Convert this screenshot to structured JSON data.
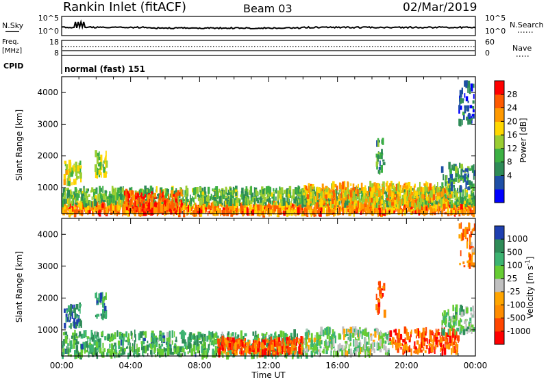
{
  "header": {
    "station": "Rankin Inlet (fitACF)",
    "beam": "Beam 03",
    "date": "02/Mar/2019"
  },
  "noise_panel": {
    "left_label": "N.Sky",
    "right_label": "N.Search",
    "left_ticks": [
      "10^5",
      "10^0"
    ],
    "right_ticks": [
      "10^5",
      "10^0"
    ]
  },
  "freq_panel": {
    "left_label_line1": "Freq.",
    "left_label_line2": "[MHz]",
    "right_label": "Nave",
    "left_ticks": [
      "18",
      "8"
    ],
    "right_ticks": [
      "60",
      "0"
    ]
  },
  "cpid_panel": {
    "label": "CPID",
    "value": "normal (fast) 151"
  },
  "time_axis": {
    "label": "Time UT",
    "ticks": [
      "00:00",
      "04:00",
      "08:00",
      "12:00",
      "16:00",
      "20:00",
      "00:00"
    ]
  },
  "chart_data": [
    {
      "type": "heatmap",
      "name": "power",
      "xlabel": "Time UT",
      "ylabel": "Slant Range [km]",
      "xlim_hours": [
        0,
        24
      ],
      "ylim": [
        180,
        4500
      ],
      "yticks": [
        1000,
        2000,
        3000,
        4000
      ],
      "colorbar": {
        "label": "Power [dB]",
        "ticks": [
          "28",
          "24",
          "20",
          "16",
          "12",
          "8",
          "4"
        ],
        "colors": [
          "#0000ff",
          "#1e4fa6",
          "#2e8b57",
          "#3cb043",
          "#9acd32",
          "#ffd700",
          "#ff9900",
          "#ff5a00",
          "#ff0000"
        ]
      },
      "regions": [
        {
          "t": [
            0.1,
            1.1
          ],
          "r": [
            1100,
            1800
          ],
          "level": 0.55
        },
        {
          "t": [
            1.9,
            2.6
          ],
          "r": [
            1400,
            2100
          ],
          "level": 0.5
        },
        {
          "t": [
            0.0,
            24.0
          ],
          "r": [
            180,
            480
          ],
          "level": 0.75
        },
        {
          "t": [
            0.0,
            24.0
          ],
          "r": [
            480,
            950
          ],
          "level": 0.4
        },
        {
          "t": [
            3.5,
            7.0
          ],
          "r": [
            250,
            850
          ],
          "level": 0.85
        },
        {
          "t": [
            14.0,
            22.5
          ],
          "r": [
            400,
            1100
          ],
          "level": 0.65
        },
        {
          "t": [
            18.2,
            18.7
          ],
          "r": [
            1400,
            2500
          ],
          "level": 0.35
        },
        {
          "t": [
            22.0,
            24.0
          ],
          "r": [
            900,
            1700
          ],
          "level": 0.3
        },
        {
          "t": [
            23.0,
            24.0
          ],
          "r": [
            3000,
            4300
          ],
          "level": 0.2
        }
      ]
    },
    {
      "type": "heatmap",
      "name": "velocity",
      "xlabel": "Time UT",
      "ylabel": "Slant Range [km]",
      "xlim_hours": [
        0,
        24
      ],
      "ylim": [
        180,
        4500
      ],
      "yticks": [
        1000,
        2000,
        3000,
        4000
      ],
      "colorbar": {
        "label": "Velocity [m s^-1]",
        "ticks": [
          "1000",
          "500",
          "100",
          "25",
          "-25",
          "-100",
          "-500",
          "-1000"
        ],
        "colors": [
          "#ff0000",
          "#ff4500",
          "#ff8c00",
          "#ffa500",
          "#c0c0c0",
          "#66cc33",
          "#3cb371",
          "#2e8b57",
          "#1e3fb0"
        ]
      },
      "regions": [
        {
          "t": [
            0.1,
            1.1
          ],
          "r": [
            1100,
            1800
          ],
          "level": 0.9
        },
        {
          "t": [
            1.9,
            2.6
          ],
          "r": [
            1400,
            2100
          ],
          "level": 0.8
        },
        {
          "t": [
            0.0,
            14.0
          ],
          "r": [
            180,
            900
          ],
          "level": 0.72
        },
        {
          "t": [
            9.0,
            14.0
          ],
          "r": [
            250,
            700
          ],
          "level": 0.2
        },
        {
          "t": [
            14.0,
            19.0
          ],
          "r": [
            200,
            1000
          ],
          "level": 0.6
        },
        {
          "t": [
            19.0,
            23.0
          ],
          "r": [
            300,
            1000
          ],
          "level": 0.2
        },
        {
          "t": [
            18.2,
            18.7
          ],
          "r": [
            1500,
            2500
          ],
          "level": 0.2
        },
        {
          "t": [
            22.0,
            24.0
          ],
          "r": [
            900,
            1700
          ],
          "level": 0.65
        },
        {
          "t": [
            23.0,
            24.0
          ],
          "r": [
            3000,
            4300
          ],
          "level": 0.3
        }
      ]
    }
  ]
}
